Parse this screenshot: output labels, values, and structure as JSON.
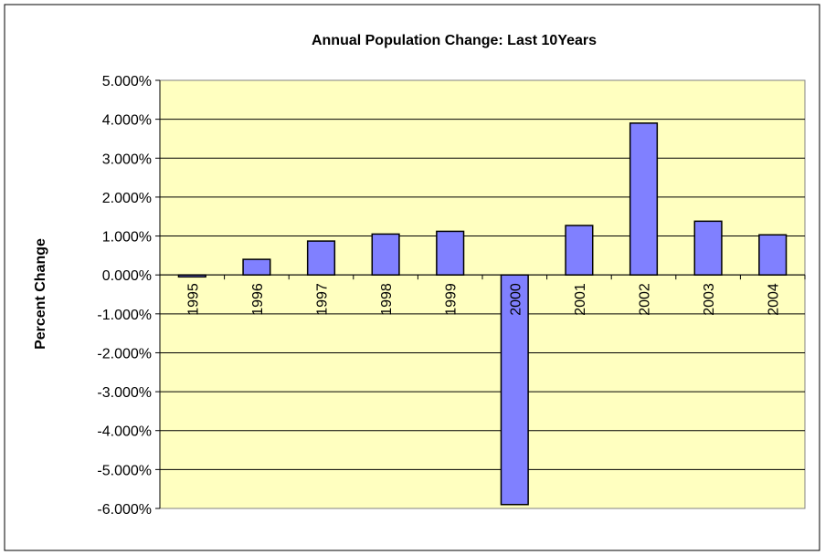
{
  "chart_data": {
    "type": "bar",
    "title": "Annual Population Change: Last 10Years",
    "xlabel": "",
    "ylabel": "Percent Change",
    "categories": [
      "1995",
      "1996",
      "1997",
      "1998",
      "1999",
      "2000",
      "2001",
      "2002",
      "2003",
      "2004"
    ],
    "values": [
      -0.05,
      0.4,
      0.87,
      1.05,
      1.12,
      -5.9,
      1.27,
      3.9,
      1.38,
      1.03
    ],
    "ylim": [
      -6,
      5
    ],
    "ytick_step": 1,
    "ytick_labels": [
      "5.000%",
      "4.000%",
      "3.000%",
      "2.000%",
      "1.000%",
      "0.000%",
      "-1.000%",
      "-2.000%",
      "-3.000%",
      "-4.000%",
      "-5.000%",
      "-6.000%"
    ],
    "grid": true,
    "legend": "none",
    "colors": {
      "bar": "#8080FF",
      "plot_background": "#FFFFC0",
      "gridline": "#000000",
      "frame": "#000000"
    }
  }
}
